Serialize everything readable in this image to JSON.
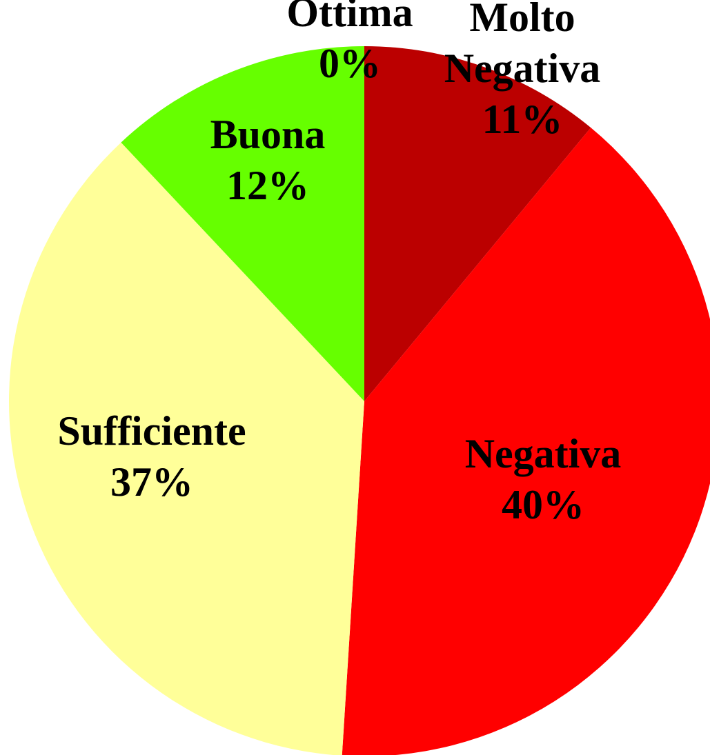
{
  "chart_data": {
    "type": "pie",
    "categories": [
      "Molto Negativa",
      "Negativa",
      "Sufficiente",
      "Buona",
      "Ottima"
    ],
    "values": [
      11,
      40,
      37,
      12,
      0
    ],
    "value_labels": [
      "11%",
      "40%",
      "37%",
      "12%",
      "0%"
    ],
    "colors": [
      "#bb0000",
      "#ff0000",
      "#ffff99",
      "#66ff00",
      "#3366ff"
    ]
  }
}
